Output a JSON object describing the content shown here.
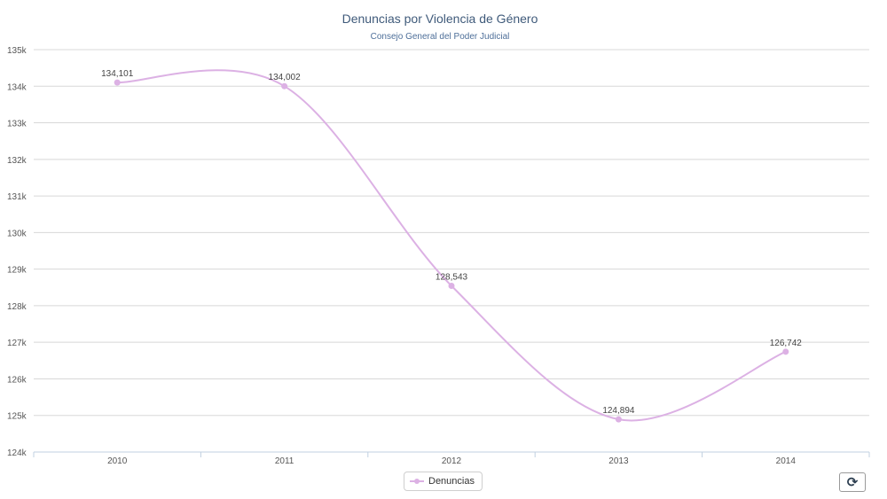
{
  "chart_data": {
    "type": "line",
    "title": "Denuncias por Violencia de Género",
    "subtitle": "Consejo General del Poder Judicial",
    "categories": [
      "2010",
      "2011",
      "2012",
      "2013",
      "2014"
    ],
    "series": [
      {
        "name": "Denuncias",
        "values": [
          134101,
          134002,
          128543,
          124894,
          126742
        ],
        "color": "#dcb1e4"
      }
    ],
    "data_labels": [
      "134,101",
      "134,002",
      "128,543",
      "124,894",
      "126,742"
    ],
    "ylim": [
      124000,
      135000
    ],
    "yticks": [
      124000,
      125000,
      126000,
      127000,
      128000,
      129000,
      130000,
      131000,
      132000,
      133000,
      134000,
      135000
    ],
    "ytick_labels": [
      "124k",
      "125k",
      "126k",
      "127k",
      "128k",
      "129k",
      "130k",
      "131k",
      "132k",
      "133k",
      "134k",
      "135k"
    ],
    "grid": true,
    "legend": "bottom-center",
    "xlabel": "",
    "ylabel": ""
  },
  "controls": {
    "reset_icon": "refresh-icon",
    "reset_glyph": "⟳"
  }
}
